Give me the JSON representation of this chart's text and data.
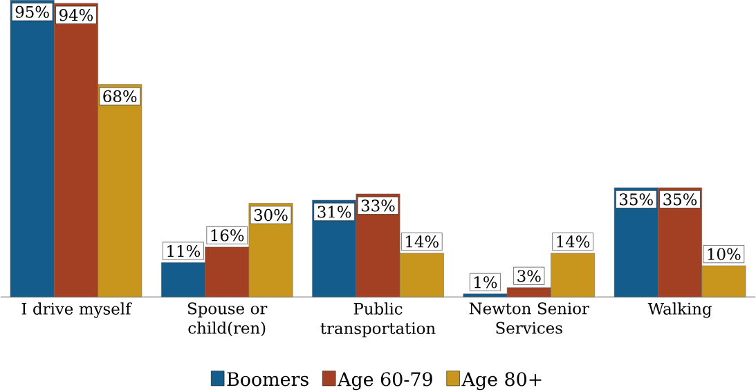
{
  "chart_data": {
    "type": "bar",
    "categories": [
      "I drive myself",
      "Spouse or child(ren)",
      "Public transportation",
      "Newton Senior Services",
      "Walking"
    ],
    "series": [
      {
        "name": "Boomers",
        "color": "#135c8c",
        "values": [
          95,
          11,
          31,
          1,
          35
        ],
        "value_labels": [
          "95%",
          "11%",
          "31%",
          "1%",
          "35%"
        ]
      },
      {
        "name": "Age 60-79",
        "color": "#a33f22",
        "values": [
          94,
          16,
          33,
          3,
          35
        ],
        "value_labels": [
          "94%",
          "16%",
          "33%",
          "3%",
          "35%"
        ]
      },
      {
        "name": "Age 80+",
        "color": "#c8961c",
        "values": [
          68,
          30,
          14,
          14,
          10
        ],
        "value_labels": [
          "68%",
          "30%",
          "14%",
          "14%",
          "10%"
        ]
      }
    ],
    "legend": "bottom"
  }
}
